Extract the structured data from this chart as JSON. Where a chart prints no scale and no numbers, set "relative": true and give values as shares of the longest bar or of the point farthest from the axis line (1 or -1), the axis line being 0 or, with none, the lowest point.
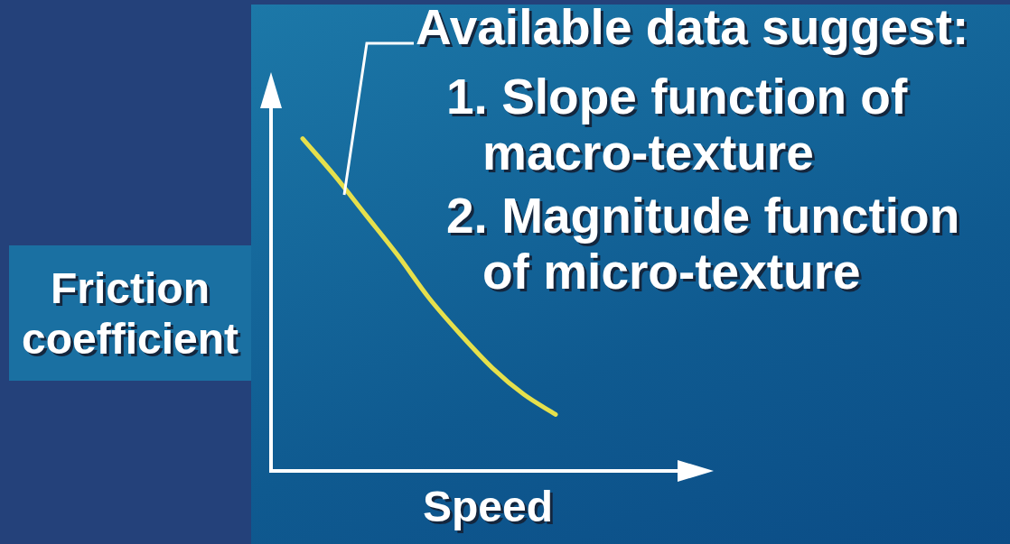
{
  "chart_data": {
    "type": "line",
    "relative": true,
    "title": "Available data suggest:",
    "annotations": [
      "1. Slope function of macro-texture",
      "2. Magnitude function of micro-texture"
    ],
    "xlabel": "Speed",
    "ylabel": "Friction coefficient",
    "categories": [
      null,
      null,
      null,
      null,
      null,
      null,
      null,
      null,
      null,
      null,
      null,
      null,
      null,
      null,
      null
    ],
    "series": [
      {
        "color": "#e6e04c",
        "values": [
          null,
          1.0,
          0.89,
          0.77,
          0.65,
          0.52,
          0.41,
          0.31,
          0.23,
          0.17,
          null,
          null,
          null,
          null,
          null
        ]
      }
    ],
    "grid": false,
    "legend": false,
    "marker": "none",
    "line_style": "solid"
  }
}
